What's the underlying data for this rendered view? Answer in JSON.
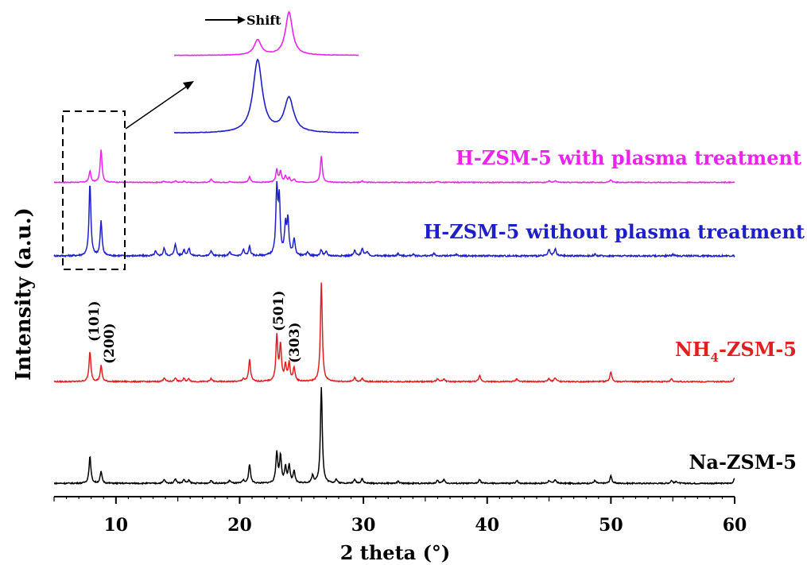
{
  "chart_data": {
    "type": "line",
    "title": "",
    "xlabel": "2 theta (°)",
    "ylabel": "Intensity (a.u.)",
    "xlim": [
      5,
      60
    ],
    "xticks": [
      "10",
      "20",
      "30",
      "40",
      "50",
      "60"
    ],
    "grid": false,
    "series": [
      {
        "name": "H-ZSM-5 with plasma treatment",
        "color": "#ee22ee",
        "peaks": [
          [
            7.9,
            0.3
          ],
          [
            8.8,
            0.85
          ],
          [
            13.9,
            0.03
          ],
          [
            14.8,
            0.04
          ],
          [
            15.5,
            0.03
          ],
          [
            17.7,
            0.08
          ],
          [
            19.2,
            0.02
          ],
          [
            20.8,
            0.15
          ],
          [
            23.0,
            0.35
          ],
          [
            23.3,
            0.28
          ],
          [
            23.7,
            0.16
          ],
          [
            24.0,
            0.12
          ],
          [
            24.4,
            0.08
          ],
          [
            26.6,
            0.7
          ],
          [
            29.9,
            0.04
          ],
          [
            36.0,
            0.03
          ],
          [
            45.0,
            0.04
          ],
          [
            45.5,
            0.04
          ],
          [
            50.0,
            0.07
          ]
        ]
      },
      {
        "name": "H-ZSM-5 without plasma treatment",
        "color": "#1f1fc8",
        "peaks": [
          [
            7.9,
            0.95
          ],
          [
            8.8,
            0.45
          ],
          [
            13.2,
            0.06
          ],
          [
            13.9,
            0.1
          ],
          [
            14.8,
            0.16
          ],
          [
            15.5,
            0.08
          ],
          [
            15.9,
            0.1
          ],
          [
            17.7,
            0.07
          ],
          [
            19.2,
            0.05
          ],
          [
            20.3,
            0.08
          ],
          [
            20.8,
            0.12
          ],
          [
            23.0,
            0.85
          ],
          [
            23.2,
            0.7
          ],
          [
            23.7,
            0.38
          ],
          [
            23.9,
            0.45
          ],
          [
            24.4,
            0.22
          ],
          [
            25.5,
            0.05
          ],
          [
            26.6,
            0.08
          ],
          [
            27.0,
            0.05
          ],
          [
            29.3,
            0.07
          ],
          [
            29.9,
            0.1
          ],
          [
            30.3,
            0.06
          ],
          [
            32.8,
            0.03
          ],
          [
            34.0,
            0.02
          ],
          [
            35.7,
            0.03
          ],
          [
            37.5,
            0.02
          ],
          [
            45.0,
            0.08
          ],
          [
            45.5,
            0.09
          ],
          [
            48.7,
            0.02
          ],
          [
            55.0,
            0.02
          ]
        ]
      },
      {
        "name": "NH4-ZSM-5",
        "color": "#e02020",
        "peaks": [
          [
            7.9,
            0.3
          ],
          [
            8.8,
            0.16
          ],
          [
            13.9,
            0.04
          ],
          [
            14.8,
            0.04
          ],
          [
            15.5,
            0.03
          ],
          [
            15.9,
            0.03
          ],
          [
            17.7,
            0.03
          ],
          [
            20.3,
            0.03
          ],
          [
            20.8,
            0.22
          ],
          [
            23.0,
            0.45
          ],
          [
            23.3,
            0.36
          ],
          [
            23.7,
            0.16
          ],
          [
            24.0,
            0.18
          ],
          [
            24.4,
            0.14
          ],
          [
            26.6,
            1.0
          ],
          [
            29.3,
            0.04
          ],
          [
            29.9,
            0.03
          ],
          [
            36.0,
            0.03
          ],
          [
            36.5,
            0.03
          ],
          [
            39.4,
            0.06
          ],
          [
            42.4,
            0.03
          ],
          [
            45.0,
            0.03
          ],
          [
            45.5,
            0.04
          ],
          [
            50.0,
            0.1
          ],
          [
            54.9,
            0.03
          ],
          [
            60.0,
            0.04
          ]
        ]
      },
      {
        "name": "Na-ZSM-5",
        "color": "#000000",
        "peaks": [
          [
            7.9,
            0.28
          ],
          [
            8.8,
            0.12
          ],
          [
            13.9,
            0.04
          ],
          [
            14.8,
            0.05
          ],
          [
            15.5,
            0.04
          ],
          [
            15.9,
            0.03
          ],
          [
            17.7,
            0.03
          ],
          [
            19.2,
            0.03
          ],
          [
            20.3,
            0.03
          ],
          [
            20.8,
            0.2
          ],
          [
            23.0,
            0.32
          ],
          [
            23.3,
            0.28
          ],
          [
            23.7,
            0.16
          ],
          [
            24.0,
            0.18
          ],
          [
            24.4,
            0.12
          ],
          [
            25.9,
            0.08
          ],
          [
            26.6,
            1.0
          ],
          [
            27.8,
            0.04
          ],
          [
            29.3,
            0.04
          ],
          [
            29.9,
            0.05
          ],
          [
            32.8,
            0.02
          ],
          [
            36.0,
            0.03
          ],
          [
            36.5,
            0.04
          ],
          [
            39.4,
            0.04
          ],
          [
            42.4,
            0.03
          ],
          [
            45.0,
            0.03
          ],
          [
            45.5,
            0.04
          ],
          [
            48.7,
            0.03
          ],
          [
            50.0,
            0.08
          ],
          [
            54.9,
            0.03
          ],
          [
            55.3,
            0.02
          ],
          [
            60.0,
            0.05
          ]
        ]
      }
    ],
    "series_labels": [
      {
        "text": "H-ZSM-5 with plasma treatment",
        "color": "#ee22ee"
      },
      {
        "text": "H-ZSM-5 without plasma treatment",
        "color": "#1f1fc8"
      },
      {
        "text": "NH",
        "sub": "4",
        "rest": "-ZSM-5",
        "color": "#e02020"
      },
      {
        "text": "Na-ZSM-5",
        "color": "#000000"
      }
    ],
    "peak_labels": [
      "(101)",
      "(200)",
      "(501)",
      "(303)"
    ],
    "inset": {
      "shift_label": "Shift",
      "zoom_range": [
        5.5,
        10.8
      ]
    }
  }
}
